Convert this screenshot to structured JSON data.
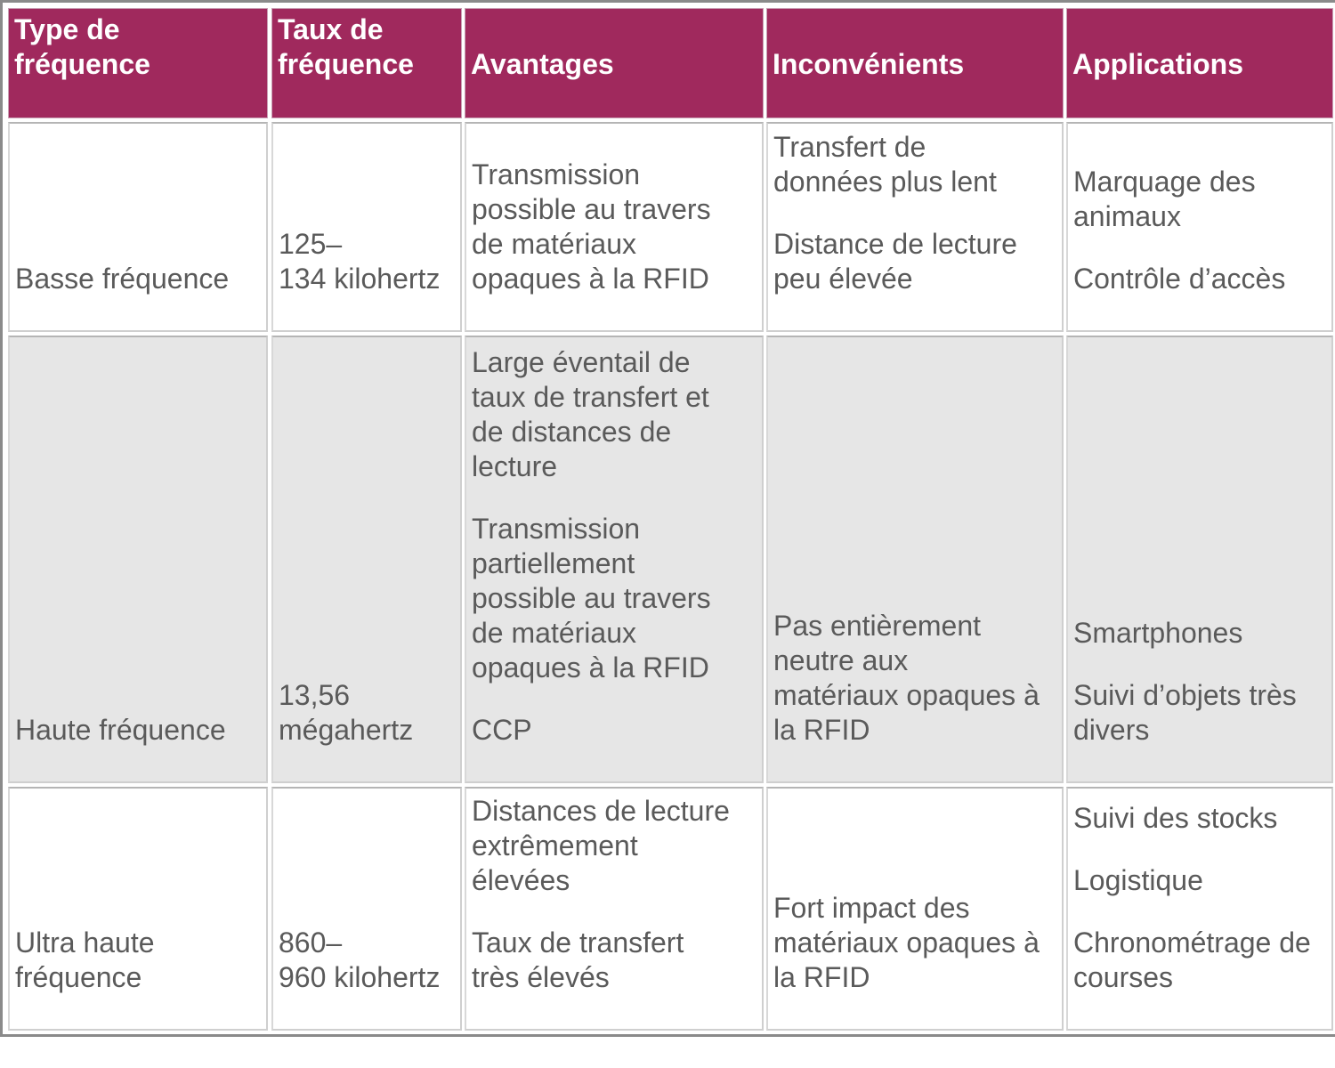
{
  "table": {
    "headers": [
      "Type de\nfréquence",
      "Taux de\nfréquence",
      "Avantages",
      "Inconvénients",
      "Applications"
    ],
    "rows": [
      {
        "type": "Basse fréquence",
        "taux": "125–\n134 kilohertz",
        "avantages": [
          "Transmission\npossible au travers\nde matériaux\nopaques à la RFID"
        ],
        "inconvenients": [
          "Transfert de\ndonnées plus lent",
          "Distance de lecture\npeu élevée"
        ],
        "applications": [
          "Marquage des\nanimaux",
          "Contrôle d’accès"
        ]
      },
      {
        "type": "Haute fréquence",
        "taux": "13,56\nmégahertz",
        "avantages": [
          "Large éventail de\ntaux de transfert et\nde distances de\nlecture",
          "Transmission\npartiellement\npossible au travers\nde matériaux\nopaques à la RFID",
          "CCP"
        ],
        "inconvenients": [
          "Pas entièrement\nneutre aux\nmatériaux opaques à\nla RFID"
        ],
        "applications": [
          "Smartphones",
          "Suivi d’objets très\ndivers"
        ]
      },
      {
        "type": "Ultra haute\nfréquence",
        "taux": "860–\n960 kilohertz",
        "avantages": [
          "Distances de lecture\nextrêmement\nélevées",
          "Taux de transfert\ntrès élevés"
        ],
        "inconvenients": [
          "Fort impact des\nmatériaux opaques à\nla RFID"
        ],
        "applications": [
          "Suivi des stocks",
          "Logistique",
          "Chronométrage de\ncourses"
        ]
      }
    ]
  },
  "colors": {
    "header_bg": "#a0295d",
    "header_text": "#ffffff",
    "row_alt_bg": "#e6e6e6",
    "body_text": "#5a5a5a"
  }
}
